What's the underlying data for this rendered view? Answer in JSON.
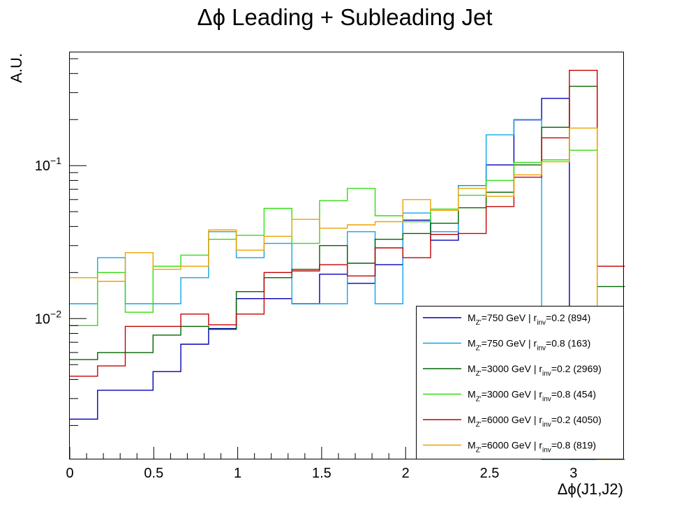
{
  "chart_data": {
    "type": "histogram-step",
    "title": "Δϕ Leading + Subleading Jet",
    "xlabel": "Δϕ(J1,J2)",
    "ylabel": "A.U.",
    "xlim": [
      0,
      3.3
    ],
    "ylim": [
      0.0012,
      0.55
    ],
    "yscale": "log",
    "grid": false,
    "legend_position": "bottom-right",
    "x_ticks": [
      {
        "value": 0,
        "label": "0"
      },
      {
        "value": 0.5,
        "label": "0.5"
      },
      {
        "value": 1,
        "label": "1"
      },
      {
        "value": 1.5,
        "label": "1.5"
      },
      {
        "value": 2,
        "label": "2"
      },
      {
        "value": 2.5,
        "label": "2.5"
      },
      {
        "value": 3,
        "label": "3"
      }
    ],
    "y_ticks": [
      {
        "value": 0.01,
        "base": "10",
        "exp": "−2"
      },
      {
        "value": 0.1,
        "base": "10",
        "exp": "−1"
      }
    ],
    "bin_edges": [
      0,
      0.1653,
      0.3306,
      0.4959,
      0.6612,
      0.8265,
      0.9918,
      1.1571,
      1.3224,
      1.4877,
      1.653,
      1.8183,
      1.9836,
      2.1489,
      2.3142,
      2.4795,
      2.6448,
      2.8101,
      2.9754,
      3.1407,
      3.306
    ],
    "series": [
      {
        "label": {
          "pre": "M",
          "sub": "Z'",
          "mid": "=750 GeV | r",
          "sub2": "inv",
          "post": "=0.2 (894)"
        },
        "color": "#0000b4",
        "values": [
          0.0022,
          0.0034,
          0.0034,
          0.0045,
          0.0068,
          0.0086,
          0.0135,
          0.0135,
          0.0125,
          0.0195,
          0.017,
          0.0225,
          0.044,
          0.0325,
          0.074,
          0.101,
          0.199,
          0.275,
          0.0012,
          0.0012
        ]
      },
      {
        "label": {
          "pre": "M",
          "sub": "Z'",
          "mid": "=750 GeV | r",
          "sub2": "inv",
          "post": "=0.8 (163)"
        },
        "color": "#0ea5e8",
        "values": [
          0.0125,
          0.025,
          0.0125,
          0.0125,
          0.0185,
          0.037,
          0.025,
          0.031,
          0.0125,
          0.0125,
          0.037,
          0.0125,
          0.049,
          0.037,
          0.074,
          0.159,
          0.2,
          0.0012,
          0.0012,
          0.0012
        ]
      },
      {
        "label": {
          "pre": "M",
          "sub": "Z'",
          "mid": "=3000 GeV | r",
          "sub2": "inv",
          "post": "=0.2 (2969)"
        },
        "color": "#006400",
        "values": [
          0.0054,
          0.006,
          0.006,
          0.0078,
          0.0089,
          0.0085,
          0.015,
          0.0185,
          0.021,
          0.03,
          0.023,
          0.033,
          0.036,
          0.042,
          0.053,
          0.067,
          0.101,
          0.178,
          0.33,
          0.0162
        ]
      },
      {
        "label": {
          "pre": "M",
          "sub": "Z'",
          "mid": "=3000 GeV | r",
          "sub2": "inv",
          "post": "=0.8 (454)"
        },
        "color": "#33dd11",
        "values": [
          0.009,
          0.02,
          0.011,
          0.022,
          0.026,
          0.033,
          0.035,
          0.0525,
          0.031,
          0.059,
          0.071,
          0.047,
          0.043,
          0.052,
          0.064,
          0.08,
          0.105,
          0.109,
          0.126,
          0.0012
        ]
      },
      {
        "label": {
          "pre": "M",
          "sub": "Z'",
          "mid": "=6000 GeV | r",
          "sub2": "inv",
          "post": "=0.2 (4050)"
        },
        "color": "#c40000",
        "values": [
          0.0042,
          0.0049,
          0.0089,
          0.0089,
          0.0107,
          0.0091,
          0.0107,
          0.02,
          0.0205,
          0.0225,
          0.019,
          0.029,
          0.025,
          0.0355,
          0.036,
          0.054,
          0.084,
          0.152,
          0.42,
          0.022
        ]
      },
      {
        "label": {
          "pre": "M",
          "sub": "Z'",
          "mid": "=6000 GeV | r",
          "sub2": "inv",
          "post": "=0.8 (819)"
        },
        "color": "#f0a000",
        "values": [
          0.0185,
          0.0175,
          0.027,
          0.021,
          0.022,
          0.038,
          0.028,
          0.0345,
          0.0445,
          0.039,
          0.041,
          0.043,
          0.06,
          0.051,
          0.071,
          0.063,
          0.087,
          0.106,
          0.176,
          0.0012
        ]
      }
    ]
  }
}
